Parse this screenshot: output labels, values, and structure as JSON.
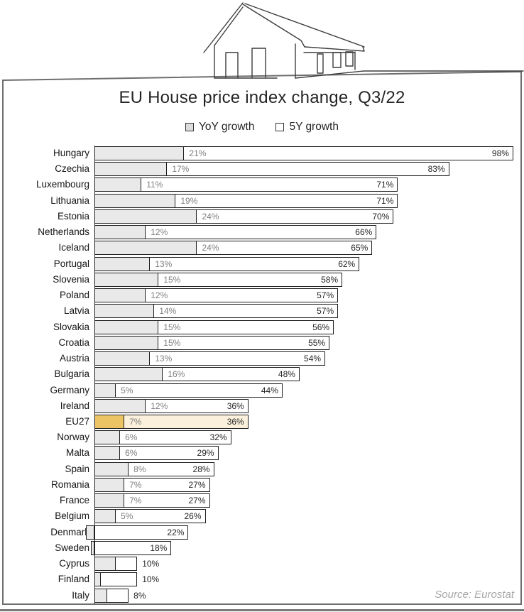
{
  "title": "EU House price index change, Q3/22",
  "legend": {
    "items": [
      {
        "label": "YoY growth",
        "swatch_fill": "#dcdcdc"
      },
      {
        "label": "5Y growth",
        "swatch_fill": "#ffffff"
      }
    ]
  },
  "source": "Source: Eurostat",
  "colors": {
    "yoy_bar_fill": "#e9e9e9",
    "five_y_bar_fill": "#ffffff",
    "bar_border": "#1f1f1f",
    "highlight_yoy_fill": "#ecc464",
    "highlight_five_y_fill": "#faf0dc",
    "yoy_value_label": "#7f7f7f",
    "five_y_value_label": "#262626",
    "frame_border": "#6e6e6e",
    "source_text": "#a6a6a6"
  },
  "chart_data": {
    "type": "bar",
    "orientation": "horizontal",
    "unit": "percent",
    "series_names": [
      "YoY growth",
      "5Y growth"
    ],
    "xlim": [
      0,
      100
    ],
    "grid": false,
    "legend_position": "top",
    "highlight_category": "EU27",
    "rows": [
      {
        "country": "Hungary",
        "yoy": 21,
        "yoy_label": "21%",
        "five_y": 98,
        "five_y_label": "98%"
      },
      {
        "country": "Czechia",
        "yoy": 17,
        "yoy_label": "17%",
        "five_y": 83,
        "five_y_label": "83%"
      },
      {
        "country": "Luxembourg",
        "yoy": 11,
        "yoy_label": "11%",
        "five_y": 71,
        "five_y_label": "71%"
      },
      {
        "country": "Lithuania",
        "yoy": 19,
        "yoy_label": "19%",
        "five_y": 71,
        "five_y_label": "71%"
      },
      {
        "country": "Estonia",
        "yoy": 24,
        "yoy_label": "24%",
        "five_y": 70,
        "five_y_label": "70%"
      },
      {
        "country": "Netherlands",
        "yoy": 12,
        "yoy_label": "12%",
        "five_y": 66,
        "five_y_label": "66%"
      },
      {
        "country": "Iceland",
        "yoy": 24,
        "yoy_label": "24%",
        "five_y": 65,
        "five_y_label": "65%"
      },
      {
        "country": "Portugal",
        "yoy": 13,
        "yoy_label": "13%",
        "five_y": 62,
        "five_y_label": "62%"
      },
      {
        "country": "Slovenia",
        "yoy": 15,
        "yoy_label": "15%",
        "five_y": 58,
        "five_y_label": "58%"
      },
      {
        "country": "Poland",
        "yoy": 12,
        "yoy_label": "12%",
        "five_y": 57,
        "five_y_label": "57%"
      },
      {
        "country": "Latvia",
        "yoy": 14,
        "yoy_label": "14%",
        "five_y": 57,
        "five_y_label": "57%"
      },
      {
        "country": "Slovakia",
        "yoy": 15,
        "yoy_label": "15%",
        "five_y": 56,
        "five_y_label": "56%"
      },
      {
        "country": "Croatia",
        "yoy": 15,
        "yoy_label": "15%",
        "five_y": 55,
        "five_y_label": "55%"
      },
      {
        "country": "Austria",
        "yoy": 13,
        "yoy_label": "13%",
        "five_y": 54,
        "five_y_label": "54%"
      },
      {
        "country": "Bulgaria",
        "yoy": 16,
        "yoy_label": "16%",
        "five_y": 48,
        "five_y_label": "48%"
      },
      {
        "country": "Germany",
        "yoy": 5,
        "yoy_label": "5%",
        "five_y": 44,
        "five_y_label": "44%"
      },
      {
        "country": "Ireland",
        "yoy": 12,
        "yoy_label": "12%",
        "five_y": 36,
        "five_y_label": "36%"
      },
      {
        "country": "EU27",
        "yoy": 7,
        "yoy_label": "7%",
        "five_y": 36,
        "five_y_label": "36%"
      },
      {
        "country": "Norway",
        "yoy": 6,
        "yoy_label": "6%",
        "five_y": 32,
        "five_y_label": "32%"
      },
      {
        "country": "Malta",
        "yoy": 6,
        "yoy_label": "6%",
        "five_y": 29,
        "five_y_label": "29%"
      },
      {
        "country": "Spain",
        "yoy": 8,
        "yoy_label": "8%",
        "five_y": 28,
        "five_y_label": "28%"
      },
      {
        "country": "Romania",
        "yoy": 7,
        "yoy_label": "7%",
        "five_y": 27,
        "five_y_label": "27%"
      },
      {
        "country": "France",
        "yoy": 7,
        "yoy_label": "7%",
        "five_y": 27,
        "five_y_label": "27%"
      },
      {
        "country": "Belgium",
        "yoy": 5,
        "yoy_label": "5%",
        "five_y": 26,
        "five_y_label": "26%"
      },
      {
        "country": "Denmark",
        "yoy": -2,
        "yoy_label": "",
        "five_y": 22,
        "five_y_label": "22%"
      },
      {
        "country": "Sweden",
        "yoy": -0.8,
        "yoy_label": "",
        "five_y": 18,
        "five_y_label": "18%"
      },
      {
        "country": "Cyprus",
        "yoy": 5,
        "yoy_label": "",
        "five_y": 10,
        "five_y_label": "10%"
      },
      {
        "country": "Finland",
        "yoy": 1.5,
        "yoy_label": "",
        "five_y": 10,
        "five_y_label": "10%"
      },
      {
        "country": "Italy",
        "yoy": 3,
        "yoy_label": "",
        "five_y": 8,
        "five_y_label": "8%"
      }
    ]
  }
}
